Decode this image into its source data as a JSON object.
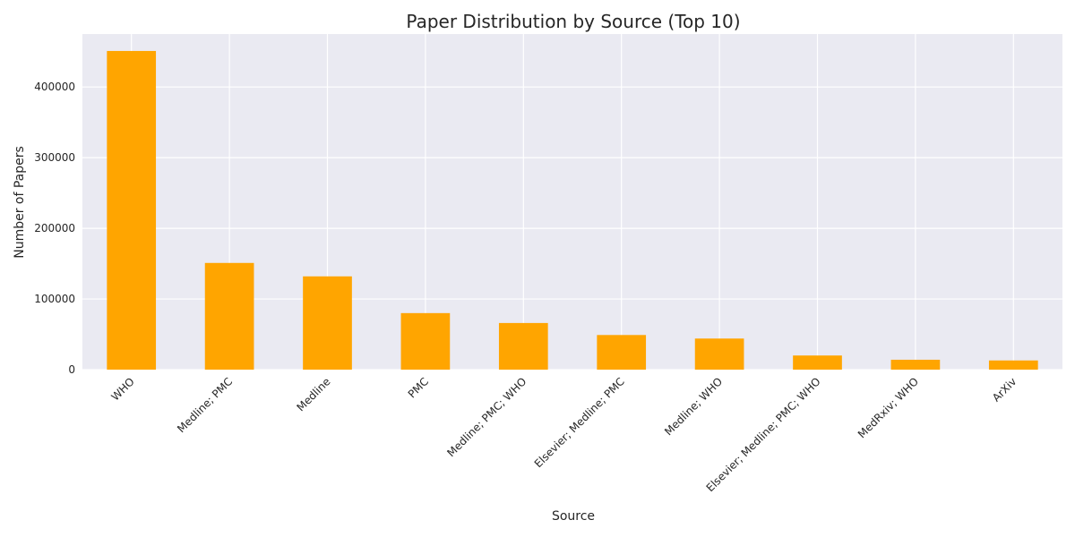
{
  "chart_data": {
    "type": "bar",
    "title": "Paper Distribution by Source (Top 10)",
    "xlabel": "Source",
    "ylabel": "Number of Papers",
    "categories": [
      "WHO",
      "Medline; PMC",
      "Medline",
      "PMC",
      "Medline; PMC; WHO",
      "Elsevier; Medline; PMC",
      "Medline; WHO",
      "Elsevier; Medline; PMC; WHO",
      "MedRxiv; WHO",
      "ArXiv"
    ],
    "values": [
      451000,
      151000,
      132000,
      80000,
      66000,
      49000,
      44000,
      20000,
      14000,
      13000
    ],
    "ylim": [
      0,
      475000
    ],
    "yticks": [
      0,
      100000,
      200000,
      300000,
      400000
    ],
    "bar_color": "#FFA500",
    "plot_background": "#EAEAF2",
    "grid": true
  }
}
